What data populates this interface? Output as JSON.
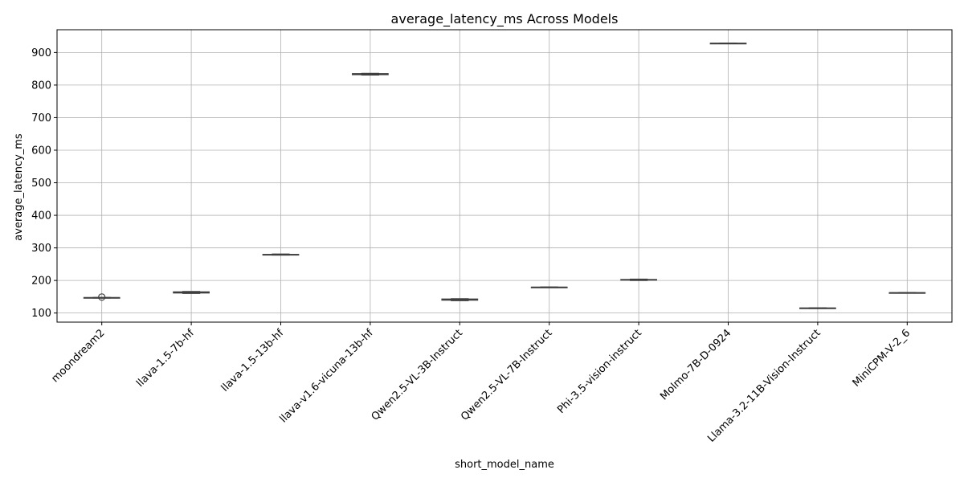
{
  "chart_data": {
    "type": "box",
    "title": "average_latency_ms Across Models",
    "xlabel": "short_model_name",
    "ylabel": "average_latency_ms",
    "ylim": [
      72,
      970
    ],
    "yticks": [
      100,
      200,
      300,
      400,
      500,
      600,
      700,
      800,
      900
    ],
    "grid": true,
    "legend": "none",
    "categories": [
      "moondream2",
      "llava-1.5-7b-hf",
      "llava-1.5-13b-hf",
      "llava-v1.6-vicuna-13b-hf",
      "Qwen2.5-VL-3B-Instruct",
      "Qwen2.5-VL-7B-Instruct",
      "Phi-3.5-vision-instruct",
      "Molmo-7B-D-0924",
      "Llama-3.2-11B-Vision-Instruct",
      "MiniCPM-V-2_6"
    ],
    "boxes": [
      {
        "min": 146,
        "q1": 146.5,
        "median": 147,
        "q3": 147.5,
        "max": 148,
        "outliers": [
          149
        ]
      },
      {
        "min": 160,
        "q1": 161.5,
        "median": 163,
        "q3": 165,
        "max": 166,
        "outliers": []
      },
      {
        "min": 278,
        "q1": 278.5,
        "median": 279,
        "q3": 280,
        "max": 281,
        "outliers": []
      },
      {
        "min": 831,
        "q1": 832,
        "median": 834,
        "q3": 835,
        "max": 836,
        "outliers": []
      },
      {
        "min": 138,
        "q1": 139.5,
        "median": 141,
        "q3": 143,
        "max": 144,
        "outliers": []
      },
      {
        "min": 178,
        "q1": 178.5,
        "median": 179,
        "q3": 179.5,
        "max": 180,
        "outliers": []
      },
      {
        "min": 200,
        "q1": 201,
        "median": 202,
        "q3": 203,
        "max": 204,
        "outliers": []
      },
      {
        "min": 927,
        "q1": 927.5,
        "median": 928,
        "q3": 928.5,
        "max": 929,
        "outliers": []
      },
      {
        "min": 114,
        "q1": 114.5,
        "median": 115,
        "q3": 115.5,
        "max": 116,
        "outliers": []
      },
      {
        "min": 161,
        "q1": 161.5,
        "median": 162,
        "q3": 162.5,
        "max": 163,
        "outliers": []
      }
    ],
    "colors": {
      "box_fill": "#ffffff",
      "box_edge": "#3f3f3f",
      "grid": "#b0b0b0",
      "axes": "#000000"
    }
  }
}
